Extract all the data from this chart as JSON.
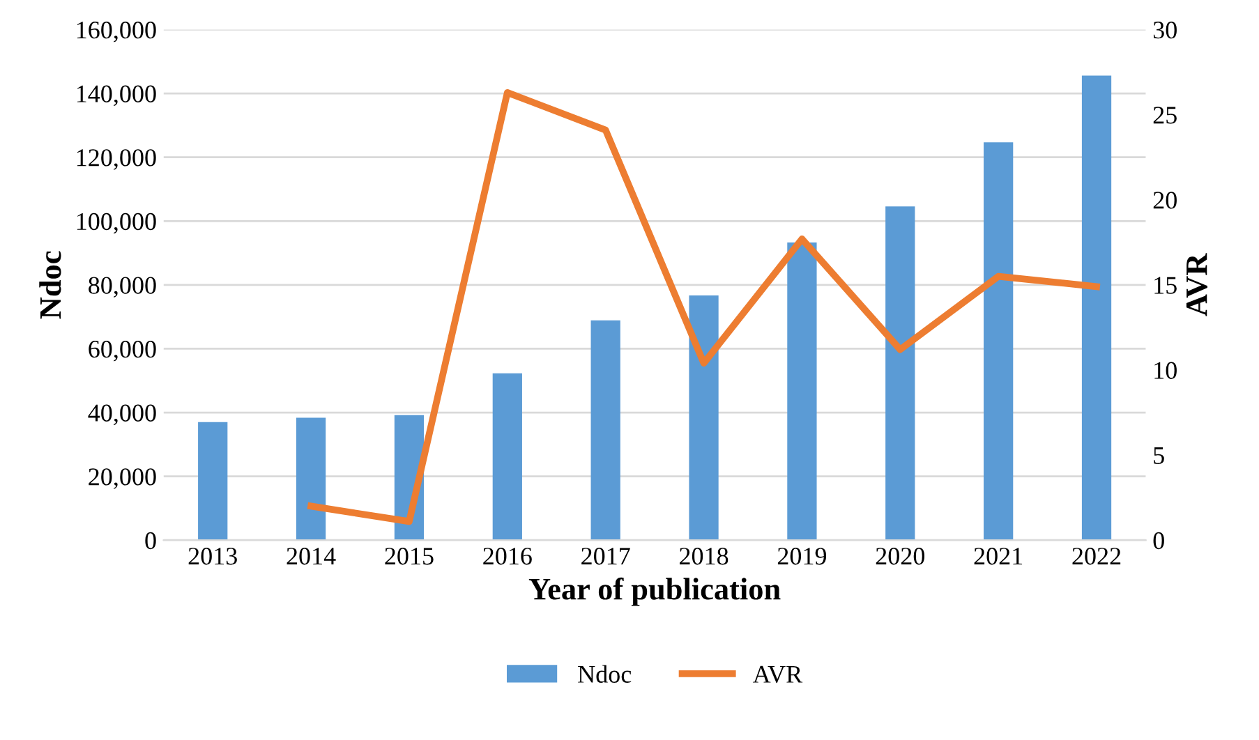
{
  "chart_data": {
    "type": "bar",
    "xlabel": "Year of publication",
    "ylabel": "Ndoc",
    "y2label": "AVR",
    "categories": [
      "2013",
      "2014",
      "2015",
      "2016",
      "2017",
      "2018",
      "2019",
      "2020",
      "2021",
      "2022"
    ],
    "series": [
      {
        "name": "Ndoc",
        "color": "#5b9bd5",
        "values": [
          37000,
          38400,
          39200,
          52300,
          68900,
          76700,
          93300,
          104600,
          124700,
          145600
        ]
      },
      {
        "name": "AVR",
        "type": "line",
        "axis": "y2",
        "color": "#ed7d31",
        "values": [
          null,
          2.0,
          1.1,
          26.3,
          24.1,
          10.4,
          17.7,
          11.2,
          15.5,
          14.9
        ]
      }
    ],
    "ylim": [
      0,
      160000
    ],
    "yticks": [
      {
        "value": 0,
        "label": "0"
      },
      {
        "value": 20000,
        "label": "20,000"
      },
      {
        "value": 40000,
        "label": "40,000"
      },
      {
        "value": 60000,
        "label": "60,000"
      },
      {
        "value": 80000,
        "label": "80,000"
      },
      {
        "value": 100000,
        "label": "100,000"
      },
      {
        "value": 120000,
        "label": "120,000"
      },
      {
        "value": 140000,
        "label": "140,000"
      },
      {
        "value": 160000,
        "label": "160,000"
      }
    ],
    "y2lim": [
      0,
      30
    ],
    "y2ticks": [
      0,
      5,
      10,
      15,
      20,
      25,
      30
    ],
    "grid": "y",
    "legend": "bottom",
    "marker": "none",
    "line_style": "solid"
  }
}
